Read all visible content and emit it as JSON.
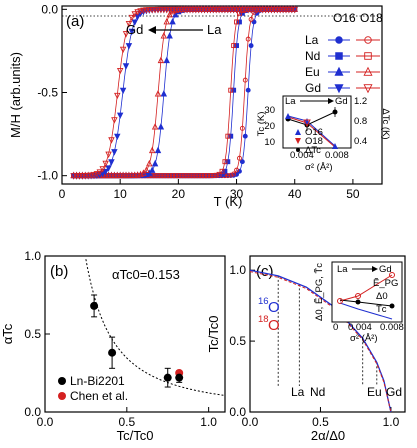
{
  "colors": {
    "blue": "#1f2fd0",
    "red": "#d42020",
    "black": "#000000",
    "dark": "#222222"
  },
  "panel_a": {
    "label": "(a)",
    "xlabel": "T (K)",
    "ylabel": "M/H (arb.units)",
    "xticks": [
      "0",
      "10",
      "20",
      "30",
      "40",
      "50"
    ],
    "yticks": [
      "0.0",
      "-0.5",
      "-1.0"
    ],
    "arrow_left": "Gd",
    "arrow_right": "La",
    "legend_headers": [
      "O16",
      "O18"
    ],
    "legend_rows": [
      "La",
      "Nd",
      "Eu",
      "Gd"
    ],
    "inset": {
      "arrow_left": "La",
      "arrow_right": "Gd",
      "ylabel_left": "Tc (K)",
      "ylabel_right": "ΔTc (K)",
      "xlabel": "σ² (Å²)",
      "yticks_left": [
        "30",
        "20",
        "10"
      ],
      "yticks_right": [
        "1.2",
        "0.8",
        "0.4"
      ],
      "xticks": [
        "0.004",
        "0.008"
      ],
      "legend": [
        "O16",
        "O18",
        "ΔTc"
      ]
    }
  },
  "panel_b": {
    "label": "(b)",
    "annotation": "αTc0=0.153",
    "xlabel": "Tc/Tc0",
    "ylabel": "αTc",
    "xticks": [
      "0.0",
      "0.5",
      "1.0"
    ],
    "yticks": [
      "0.0",
      "0.5",
      "1.0"
    ],
    "legend": [
      "Ln-Bi2201",
      "Chen et al."
    ]
  },
  "panel_c": {
    "label": "(c)",
    "xlabel": "2α/Δ0",
    "ylabel": "Tc/Tc0",
    "xticks": [
      "0.0",
      "0.5",
      "1.0"
    ],
    "yticks": [
      "0.0",
      "0.5",
      "1.0"
    ],
    "iso16": "16",
    "iso18": "18",
    "iso_letter": "O",
    "markers": [
      "La",
      "Nd",
      "Eu",
      "Gd"
    ],
    "inset": {
      "arrow_left": "La",
      "arrow_right": "Gd",
      "xlabel": "σ² (Å²)",
      "xticks": [
        "0",
        "0.004",
        "0.008"
      ],
      "legend": [
        "Ẽ_PG",
        "Δ0",
        "T̃c"
      ],
      "ylabel": "Δ0, Ẽ_PG, T̃c"
    }
  },
  "chart_data": [
    {
      "type": "line",
      "title": "",
      "xlabel": "T (K)",
      "ylabel": "M/H (arb.units)",
      "xlim": [
        0,
        55
      ],
      "ylim": [
        -1.05,
        0.02
      ],
      "series": [
        {
          "name": "La O16",
          "onset": 33,
          "width": 0.9
        },
        {
          "name": "La O18",
          "onset": 32.4,
          "width": 0.9
        },
        {
          "name": "Nd O16",
          "onset": 30.5,
          "width": 0.9
        },
        {
          "name": "Nd O18",
          "onset": 30,
          "width": 0.9
        },
        {
          "name": "Eu O16",
          "onset": 19,
          "width": 1.3
        },
        {
          "name": "Eu O18",
          "onset": 18,
          "width": 1.3
        },
        {
          "name": "Gd O16",
          "onset": 12.5,
          "width": 1.8
        },
        {
          "name": "Gd O18",
          "onset": 11.6,
          "width": 1.8
        }
      ]
    },
    {
      "type": "scatter",
      "title": "",
      "xlabel": "Tc/Tc0",
      "ylabel": "αTc",
      "xlim": [
        0,
        1.1
      ],
      "ylim": [
        0,
        1.0
      ],
      "series": [
        {
          "name": "Ln-Bi2201",
          "x": [
            0.3,
            0.41,
            0.75,
            0.82
          ],
          "y": [
            0.68,
            0.38,
            0.22,
            0.22
          ],
          "err": [
            0.07,
            0.1,
            0.06,
            0.03
          ]
        },
        {
          "name": "Chen et al.",
          "x": [
            0.82
          ],
          "y": [
            0.25
          ]
        }
      ],
      "fit_alpha0": 0.153
    },
    {
      "type": "line",
      "title": "",
      "xlabel": "2α/Δ0",
      "ylabel": "Tc/Tc0",
      "xlim": [
        0,
        1.1
      ],
      "ylim": [
        0,
        1.1
      ],
      "series": [
        {
          "name": "16",
          "x": [
            0,
            0.2,
            0.4,
            0.6,
            0.8,
            0.9,
            0.95,
            1.0
          ],
          "y": [
            1.0,
            0.96,
            0.88,
            0.74,
            0.52,
            0.35,
            0.22,
            0.0
          ]
        },
        {
          "name": "18",
          "x": [
            0,
            0.2,
            0.4,
            0.6,
            0.8,
            0.9,
            0.95,
            1.0
          ],
          "y": [
            0.99,
            0.95,
            0.87,
            0.73,
            0.51,
            0.34,
            0.21,
            0.0
          ]
        }
      ],
      "markers": {
        "La": 0.2,
        "Nd": 0.35,
        "Eu": 0.8,
        "Gd": 0.9
      }
    }
  ]
}
